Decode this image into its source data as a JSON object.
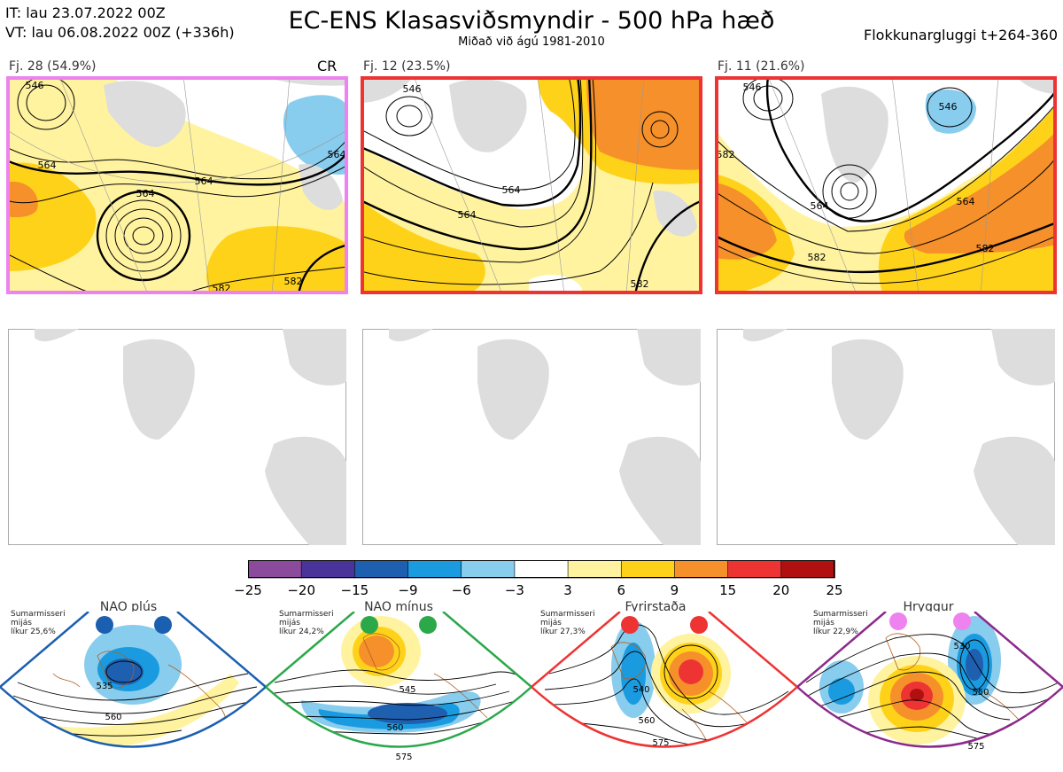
{
  "header": {
    "it_line": "IT: lau 23.07.2022 00Z",
    "vt_line": "VT: lau 06.08.2022 00Z  (+336h)",
    "title": "EC-ENS Klasasviðsmyndir - 500 hPa hæð",
    "subtitle": "Miðað við ágú 1981-2010",
    "window": "Flokkunargluggi t+264-360"
  },
  "clusters": [
    {
      "label": "Fj. 28 (54.9%)",
      "tag": "CR",
      "border_color": "#ee82ee",
      "contours": [
        "546",
        "564",
        "564",
        "564",
        "582",
        "582",
        "564"
      ]
    },
    {
      "label": "Fj. 12 (23.5%)",
      "tag": "",
      "border_color": "#ee3333",
      "contours": [
        "546",
        "564",
        "564",
        "582"
      ]
    },
    {
      "label": "Fj. 11 (21.6%)",
      "tag": "",
      "border_color": "#ee3333",
      "contours": [
        "546",
        "546",
        "564",
        "564",
        "582",
        "582",
        "582"
      ]
    }
  ],
  "colorbar": {
    "ticks": [
      "−25",
      "−20",
      "−15",
      "−9",
      "−6",
      "−3",
      "3",
      "6",
      "9",
      "15",
      "20",
      "25"
    ],
    "colors": [
      "#8b4a9c",
      "#4a3399",
      "#1f5fb0",
      "#1a9be0",
      "#88ccee",
      "#ffffff",
      "#fff3a0",
      "#ffd21a",
      "#f5902a",
      "#ee3333",
      "#b01010"
    ]
  },
  "regimes": [
    {
      "name": "NAO plús",
      "note": [
        "Sumarmisseri",
        "mijás",
        "líkur 25,6%"
      ],
      "frame_color": "#1a5fb0",
      "dot_color": "#1a5fb0",
      "contours": [
        "535",
        "560"
      ]
    },
    {
      "name": "NAO mínus",
      "note": [
        "Sumarmisseri",
        "mijás",
        "líkur 24,2%"
      ],
      "frame_color": "#2aa84a",
      "dot_color": "#2aa84a",
      "contours": [
        "545",
        "560",
        "575"
      ]
    },
    {
      "name": "Fyrirstaða",
      "note": [
        "Sumarmisseri",
        "mijás",
        "líkur 27,3%"
      ],
      "frame_color": "#ee3333",
      "dot_color": "#ee3333",
      "contours": [
        "540",
        "560",
        "575"
      ]
    },
    {
      "name": "Hryggur",
      "note": [
        "Sumarmisseri",
        "mijás",
        "líkur 22,9%"
      ],
      "frame_color": "#8b2a8b",
      "dot_color": "#ee82ee",
      "contours": [
        "530",
        "550",
        "575"
      ]
    }
  ]
}
